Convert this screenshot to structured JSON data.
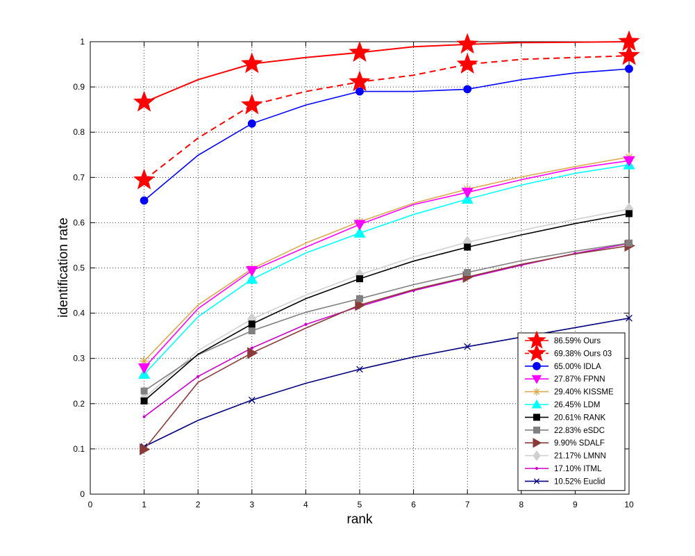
{
  "chart_data": {
    "type": "line",
    "title": "",
    "xlabel": "rank",
    "ylabel": "identification rate",
    "xlim": [
      0,
      10
    ],
    "ylim": [
      0,
      1
    ],
    "xticks": [
      0,
      1,
      2,
      3,
      4,
      5,
      6,
      7,
      8,
      9,
      10
    ],
    "yticks": [
      0,
      0.1,
      0.2,
      0.3,
      0.4,
      0.5,
      0.6,
      0.7,
      0.8,
      0.9,
      1
    ],
    "grid": true,
    "legend_position": "bottom-right",
    "x": [
      1,
      2,
      3,
      4,
      5,
      6,
      7,
      8,
      9,
      10
    ],
    "series": [
      {
        "name": "86.59% Ours",
        "color": "#ff0000",
        "dash": false,
        "marker": "star",
        "values": [
          0.866,
          0.916,
          0.951,
          0.965,
          0.976,
          0.989,
          0.994,
          0.998,
          0.999,
          1.0
        ]
      },
      {
        "name": "69.38% Ours 03",
        "color": "#ff0000",
        "dash": true,
        "marker": "star",
        "values": [
          0.694,
          0.787,
          0.86,
          0.89,
          0.911,
          0.926,
          0.95,
          0.961,
          0.965,
          0.969
        ]
      },
      {
        "name": "65.00% IDLA",
        "color": "#0000ff",
        "dash": false,
        "marker": "circle",
        "values": [
          0.649,
          0.749,
          0.819,
          0.86,
          0.89,
          0.89,
          0.895,
          0.916,
          0.931,
          0.94
        ]
      },
      {
        "name": "27.87% FPNN",
        "color": "#ff00ff",
        "dash": false,
        "marker": "triangle-down",
        "values": [
          0.279,
          0.41,
          0.494,
          0.546,
          0.596,
          0.64,
          0.667,
          0.695,
          0.72,
          0.737
        ]
      },
      {
        "name": "29.40% KISSME",
        "color": "#dcaa50",
        "dash": false,
        "marker": "asterisk",
        "values": [
          0.294,
          0.418,
          0.498,
          0.555,
          0.602,
          0.643,
          0.674,
          0.701,
          0.724,
          0.745
        ]
      },
      {
        "name": "26.45% LDM",
        "color": "#00ffff",
        "dash": false,
        "marker": "triangle-up",
        "values": [
          0.265,
          0.392,
          0.475,
          0.533,
          0.577,
          0.618,
          0.652,
          0.683,
          0.709,
          0.728
        ]
      },
      {
        "name": "20.61% RANK",
        "color": "#000000",
        "dash": false,
        "marker": "square",
        "values": [
          0.206,
          0.309,
          0.376,
          0.432,
          0.476,
          0.515,
          0.546,
          0.573,
          0.598,
          0.62
        ]
      },
      {
        "name": "22.83% eSDC",
        "color": "#808080",
        "dash": false,
        "marker": "square",
        "values": [
          0.228,
          0.308,
          0.361,
          0.402,
          0.432,
          0.463,
          0.49,
          0.516,
          0.537,
          0.555
        ]
      },
      {
        "name": "9.90% SDALF",
        "color": "#8b3a3a",
        "dash": false,
        "marker": "triangle-right",
        "values": [
          0.099,
          0.247,
          0.312,
          0.367,
          0.418,
          0.452,
          0.48,
          0.508,
          0.531,
          0.549
        ]
      },
      {
        "name": "21.17% LMNN",
        "color": "#d0d0d0",
        "dash": false,
        "marker": "diamond",
        "values": [
          0.212,
          0.317,
          0.387,
          0.44,
          0.485,
          0.524,
          0.557,
          0.583,
          0.607,
          0.63
        ]
      },
      {
        "name": "17.10% ITML",
        "color": "#cc00cc",
        "dash": false,
        "marker": "dot",
        "values": [
          0.171,
          0.26,
          0.323,
          0.375,
          0.415,
          0.45,
          0.478,
          0.506,
          0.532,
          0.554
        ]
      },
      {
        "name": "10.52% Euclid",
        "color": "#000080",
        "dash": false,
        "marker": "x",
        "values": [
          0.105,
          0.163,
          0.208,
          0.245,
          0.276,
          0.303,
          0.326,
          0.347,
          0.368,
          0.389
        ]
      }
    ]
  }
}
